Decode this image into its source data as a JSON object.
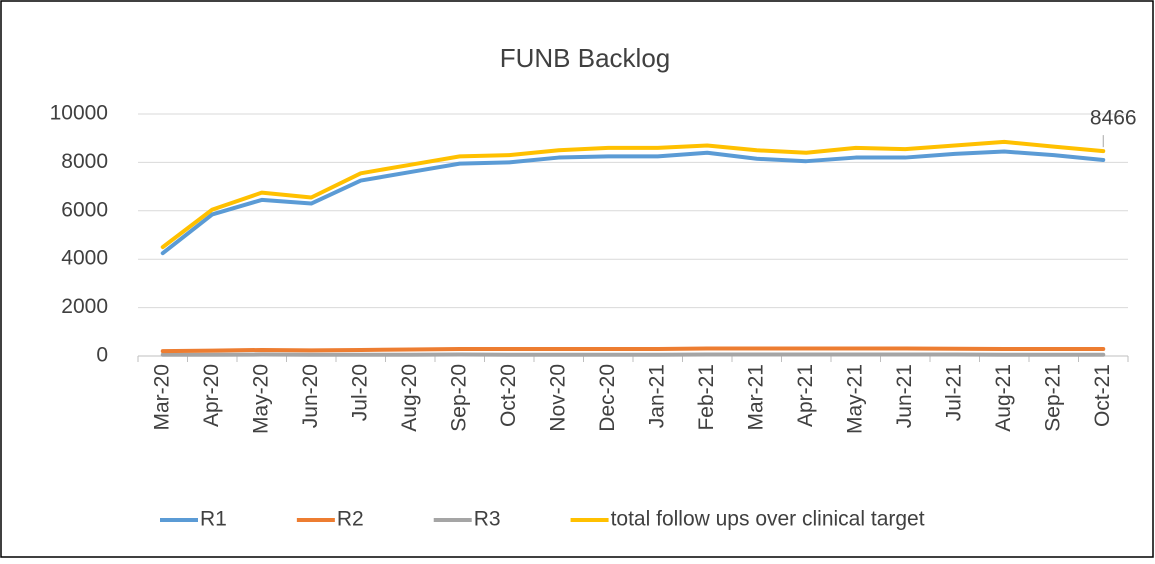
{
  "chart_data": {
    "type": "line",
    "title": "FUNB Backlog",
    "categories": [
      "Mar-20",
      "Apr-20",
      "May-20",
      "Jun-20",
      "Jul-20",
      "Aug-20",
      "Sep-20",
      "Oct-20",
      "Nov-20",
      "Dec-20",
      "Jan-21",
      "Feb-21",
      "Mar-21",
      "Apr-21",
      "May-21",
      "Jun-21",
      "Jul-21",
      "Aug-21",
      "Sep-21",
      "Oct-21"
    ],
    "series": [
      {
        "name": "R1",
        "color": "#5b9bd5",
        "values": [
          4250,
          5850,
          6450,
          6300,
          7250,
          7600,
          7950,
          8000,
          8200,
          8250,
          8250,
          8400,
          8150,
          8050,
          8200,
          8200,
          8350,
          8450,
          8300,
          8100
        ]
      },
      {
        "name": "R2",
        "color": "#ed7d31",
        "values": [
          200,
          220,
          250,
          230,
          250,
          270,
          290,
          290,
          290,
          290,
          290,
          310,
          310,
          310,
          310,
          310,
          300,
          290,
          290,
          290
        ]
      },
      {
        "name": "R3",
        "color": "#a5a5a5",
        "values": [
          50,
          50,
          60,
          50,
          50,
          50,
          60,
          50,
          50,
          50,
          50,
          60,
          60,
          60,
          60,
          60,
          60,
          50,
          50,
          50
        ]
      },
      {
        "name": "total follow ups over clinical target",
        "color": "#ffc000",
        "values": [
          4500,
          6050,
          6750,
          6550,
          7550,
          7900,
          8250,
          8300,
          8500,
          8600,
          8600,
          8700,
          8500,
          8400,
          8600,
          8550,
          8700,
          8850,
          8650,
          8466
        ],
        "value_labels": [
          null,
          null,
          null,
          null,
          null,
          null,
          null,
          null,
          null,
          null,
          null,
          null,
          null,
          null,
          null,
          null,
          null,
          null,
          null,
          "8466"
        ]
      }
    ],
    "ylim": [
      0,
      10000
    ],
    "yticks": [
      0,
      2000,
      4000,
      6000,
      8000,
      10000
    ],
    "grid": true,
    "legend": "bottom"
  }
}
